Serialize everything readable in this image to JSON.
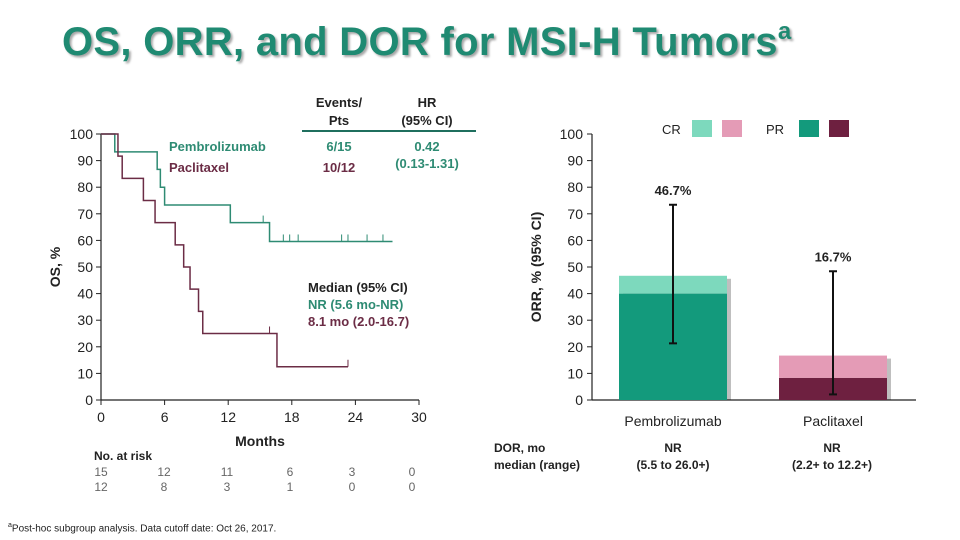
{
  "title": "OS, ORR, and DOR for MSI-H Tumors",
  "title_superscript": "a",
  "colors": {
    "title": "#1f8a72",
    "pembro": "#2e8b73",
    "pacli": "#6b2c45",
    "cr_pembro": "#7dd9bd",
    "pr_pembro": "#139a7c",
    "cr_pacli": "#e49bb6",
    "pr_pacli": "#6e2040"
  },
  "km_table": {
    "events_header": [
      "Events/",
      "Pts"
    ],
    "hr_header": [
      "HR",
      "(95% CI)"
    ],
    "rows": [
      {
        "name": "Pembrolizumab",
        "events": "6/15",
        "hr": "0.42"
      },
      {
        "name": "Paclitaxel",
        "events": "10/12",
        "hr": "(0.13-1.31)"
      }
    ]
  },
  "median": {
    "header": "Median (95% CI)",
    "pembro": "NR (5.6 mo-NR)",
    "pacli": "8.1 mo (2.0-16.7)"
  },
  "risk": {
    "header": "No. at risk",
    "pembro": [
      "15",
      "12",
      "11",
      "6",
      "3",
      "0"
    ],
    "pacli": [
      "12",
      "8",
      "3",
      "1",
      "0",
      "0"
    ]
  },
  "dor": {
    "label": [
      "DOR, mo",
      "median (range)"
    ],
    "pembro": [
      "NR",
      "(5.5 to 26.0+)"
    ],
    "pacli": [
      "NR",
      "(2.2+ to 12.2+)"
    ]
  },
  "footnote": {
    "mark": "a",
    "text": "Post-hoc subgroup analysis. Data cutoff date: Oct 26, 2017."
  },
  "chart_data": [
    {
      "type": "line",
      "subtype": "kaplan-meier",
      "xlabel": "Months",
      "ylabel": "OS, %",
      "xlim": [
        0,
        30
      ],
      "ylim": [
        0,
        100
      ],
      "xticks": [
        "0",
        "6",
        "12",
        "18",
        "24",
        "30"
      ],
      "yticks": [
        "0",
        "10",
        "20",
        "30",
        "40",
        "50",
        "60",
        "70",
        "80",
        "90",
        "100"
      ],
      "xtick_values": [
        0,
        6,
        12,
        18,
        24,
        30
      ],
      "ytick_values": [
        0,
        10,
        20,
        30,
        40,
        50,
        60,
        70,
        80,
        90,
        100
      ],
      "series": [
        {
          "name": "Pembrolizumab",
          "color": "#2e8b73",
          "steps": [
            [
              0,
              100
            ],
            [
              1.3,
              93.3
            ],
            [
              5.3,
              86.7
            ],
            [
              5.6,
              80
            ],
            [
              6,
              73.3
            ],
            [
              12.2,
              66.7
            ],
            [
              15.9,
              59.6
            ]
          ],
          "end": 27.5,
          "censors": [
            [
              15.3,
              66.7
            ],
            [
              17.2,
              59.6
            ],
            [
              17.8,
              59.6
            ],
            [
              18.6,
              59.6
            ],
            [
              22.7,
              59.6
            ],
            [
              23.3,
              59.6
            ],
            [
              25.1,
              59.6
            ],
            [
              26.6,
              59.6
            ]
          ]
        },
        {
          "name": "Paclitaxel",
          "color": "#6b2c45",
          "steps": [
            [
              0,
              100
            ],
            [
              1.6,
              91.7
            ],
            [
              2,
              83.3
            ],
            [
              4,
              75
            ],
            [
              5.1,
              66.7
            ],
            [
              7,
              58.3
            ],
            [
              7.8,
              50
            ],
            [
              8.4,
              41.7
            ],
            [
              9.2,
              33.3
            ],
            [
              9.6,
              25
            ],
            [
              16.6,
              12.5
            ]
          ],
          "end": 23.3,
          "censors": [
            [
              15.9,
              25
            ],
            [
              23.3,
              12.5
            ]
          ]
        }
      ]
    },
    {
      "type": "bar",
      "subtype": "stacked",
      "ylabel": "ORR, % (95% CI)",
      "ylim": [
        0,
        100
      ],
      "yticks": [
        "0",
        "10",
        "20",
        "30",
        "40",
        "50",
        "60",
        "70",
        "80",
        "90",
        "100"
      ],
      "ytick_values": [
        0,
        10,
        20,
        30,
        40,
        50,
        60,
        70,
        80,
        90,
        100
      ],
      "categories": [
        "Pembrolizumab",
        "Paclitaxel"
      ],
      "legend": {
        "cr": "CR",
        "pr": "PR",
        "position": "top"
      },
      "series": [
        {
          "name": "PR",
          "values": [
            40,
            8.3
          ],
          "colors": [
            "#139a7c",
            "#6e2040"
          ]
        },
        {
          "name": "CR",
          "values": [
            6.7,
            8.4
          ],
          "colors": [
            "#7dd9bd",
            "#e49bb6"
          ]
        }
      ],
      "totals": [
        46.7,
        16.7
      ],
      "total_labels": [
        "46.7%",
        "16.7%"
      ],
      "ci": [
        [
          21.3,
          73.4
        ],
        [
          2.1,
          48.4
        ]
      ]
    }
  ]
}
